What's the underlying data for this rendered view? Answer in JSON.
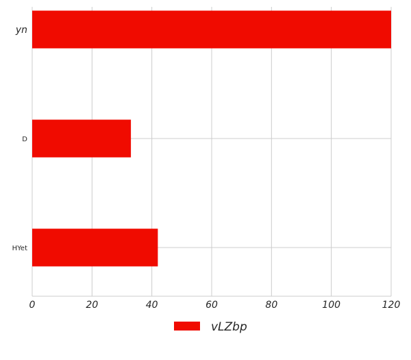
{
  "chart_data": {
    "type": "bar",
    "orientation": "horizontal",
    "categories": [
      "yn",
      "D",
      "HYet"
    ],
    "series": [
      {
        "name": "vLZbp",
        "values": [
          120,
          33,
          42
        ],
        "color": "#f00b00"
      }
    ],
    "xlim": [
      0,
      120
    ],
    "xticks": [
      "0",
      "20",
      "40",
      "60",
      "80",
      "100",
      "120"
    ],
    "title": "",
    "xlabel": "",
    "ylabel": "",
    "grid": true,
    "legend": "bottom-center"
  }
}
